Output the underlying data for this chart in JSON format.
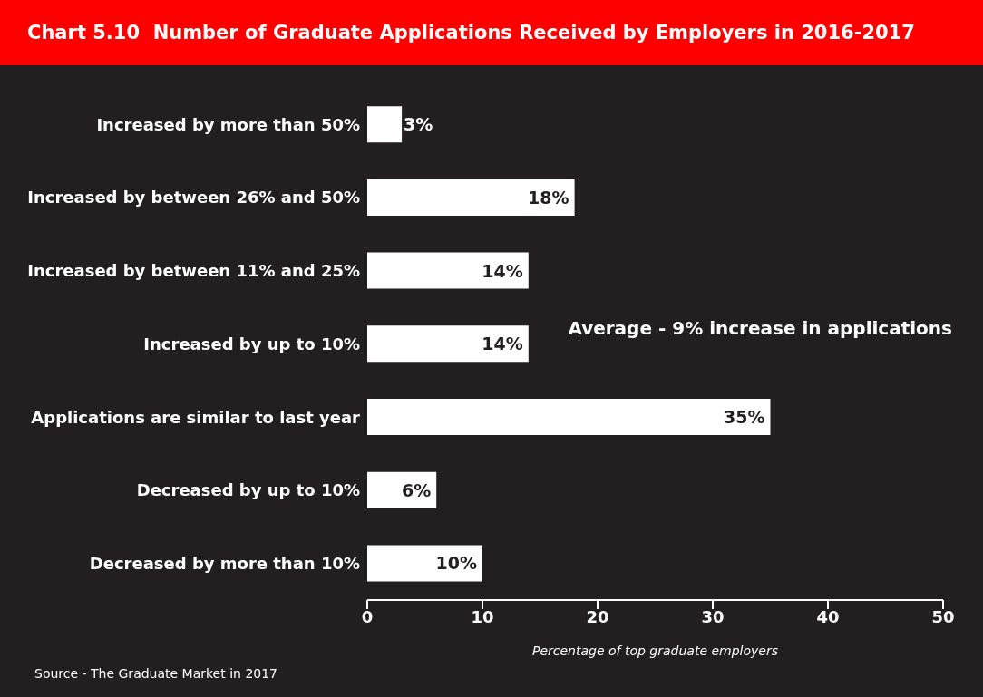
{
  "chart_data": {
    "type": "bar",
    "orientation": "horizontal",
    "title": "Chart 5.10  Number of Graduate Applications Received by Employers in 2016-2017",
    "categories": [
      "Increased by more than 50%",
      "Increased by between 26% and 50%",
      "Increased by between 11% and 25%",
      "Increased by up to 10%",
      "Applications are similar to last year",
      "Decreased by up to 10%",
      "Decreased by more than 10%"
    ],
    "values": [
      3,
      18,
      14,
      14,
      35,
      6,
      10
    ],
    "value_labels": [
      "3%",
      "18%",
      "14%",
      "14%",
      "35%",
      "6%",
      "10%"
    ],
    "color": "#ffffff",
    "xlim": [
      0,
      50
    ],
    "xticks": [
      0,
      10,
      20,
      30,
      40,
      50
    ],
    "xlabel": "Percentage of top graduate employers",
    "annotations": [
      "Average - 9% increase in applications",
      "Source - The Graduate Market in 2017"
    ]
  }
}
